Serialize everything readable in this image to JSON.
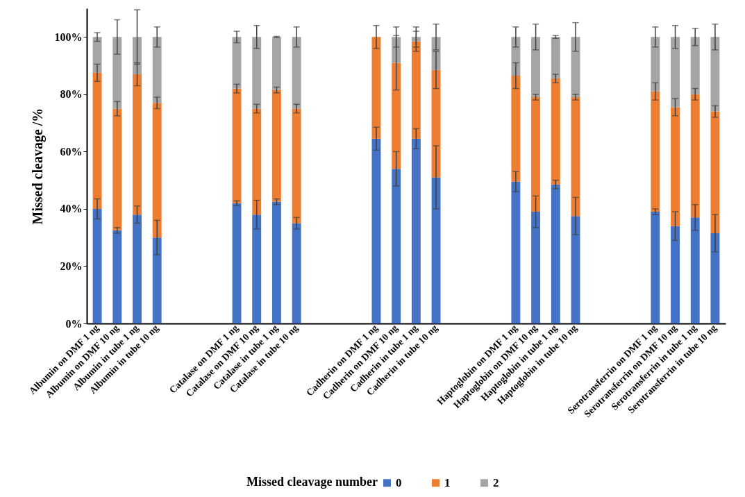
{
  "chart_data": {
    "type": "bar",
    "stacked": true,
    "ylabel": "Missed cleavage /%",
    "legend_title": "Missed cleavage number",
    "legend": "bottom",
    "grid": false,
    "categories": [
      "Albumin on DMF 1 ng",
      "Albumin on DMF 10 ng",
      "Albumin in tube 1 ng",
      "Albumin in tube 10 ng",
      null,
      null,
      null,
      "Catalase on DMF 1 ng",
      "Catalase on DMF 10 ng",
      "Catalase in tube 1 ng",
      "Catalase in tube 10 ng",
      null,
      null,
      null,
      "Cadherin on DMF 1 ng",
      "Cadherin on DMF 10 ng",
      "Cadherin in tube 1 ng",
      "Cadherin in tube 10 ng",
      null,
      null,
      null,
      "Haptoglobin on DMF 1 ng",
      "Haptoglobin on DMF 10 ng",
      "Haptoglobin in tube 1 ng",
      "Haptoglobin in tube 10 ng",
      null,
      null,
      null,
      "Serotransferrin on DMF 1 ng",
      "Serotransferrin on DMF 10 ng",
      "Serotransferrin in tube 1 ng",
      "Serotransferrin in tube 10 ng"
    ],
    "ylim": [
      0,
      110
    ],
    "yticks": [
      {
        "value": 0,
        "label": "0%"
      },
      {
        "value": 20,
        "label": "20%"
      },
      {
        "value": 40,
        "label": "40%"
      },
      {
        "value": 60,
        "label": "60%"
      },
      {
        "value": 80,
        "label": "80%"
      },
      {
        "value": 100,
        "label": "100%"
      }
    ],
    "series": [
      {
        "name": "0",
        "color": "#4472c4",
        "values": [
          40,
          32.5,
          38,
          30,
          null,
          null,
          null,
          42,
          38,
          42.5,
          35,
          null,
          null,
          null,
          64.5,
          54,
          64.5,
          51,
          null,
          null,
          null,
          49.5,
          39,
          48.5,
          37.5,
          null,
          null,
          null,
          39,
          34,
          37,
          31.5
        ],
        "errors": [
          3.5,
          1,
          3,
          6,
          null,
          null,
          null,
          0.8,
          5,
          1,
          2,
          null,
          null,
          null,
          4,
          6,
          3.5,
          11,
          null,
          null,
          null,
          3.5,
          5.5,
          1.5,
          6.5,
          null,
          null,
          null,
          1,
          5,
          4.5,
          6.5
        ]
      },
      {
        "name": "1",
        "color": "#ed7d31",
        "values": [
          47.5,
          42.5,
          49,
          47,
          null,
          null,
          null,
          40,
          37,
          39,
          40,
          null,
          null,
          null,
          35.5,
          37,
          34,
          37.5,
          null,
          null,
          null,
          37,
          40,
          37,
          41.5,
          null,
          null,
          null,
          42,
          41.5,
          43,
          42.5
        ],
        "errors": [
          3,
          2.5,
          4,
          2,
          null,
          null,
          null,
          1.5,
          1.5,
          1,
          1.5,
          null,
          null,
          null,
          4,
          9.5,
          3.5,
          6.5,
          null,
          null,
          null,
          4.5,
          1,
          1.5,
          1,
          null,
          null,
          null,
          3,
          3,
          2,
          2
        ]
      },
      {
        "name": "2",
        "color": "#a5a5a5",
        "values": [
          12.5,
          25,
          13,
          23,
          null,
          null,
          null,
          18,
          25,
          18.5,
          25,
          null,
          null,
          null,
          0,
          9,
          1.5,
          11.5,
          null,
          null,
          null,
          13.5,
          21,
          14.5,
          21,
          null,
          null,
          null,
          19,
          24.5,
          20,
          26
        ],
        "errors": [
          1.5,
          6,
          9.5,
          3.5,
          null,
          null,
          null,
          2,
          4,
          0.2,
          3.5,
          null,
          null,
          null,
          null,
          3.5,
          3.5,
          4.5,
          null,
          null,
          null,
          3.5,
          4.5,
          0.5,
          5,
          null,
          null,
          null,
          3.5,
          4,
          3,
          4.5
        ]
      }
    ]
  }
}
